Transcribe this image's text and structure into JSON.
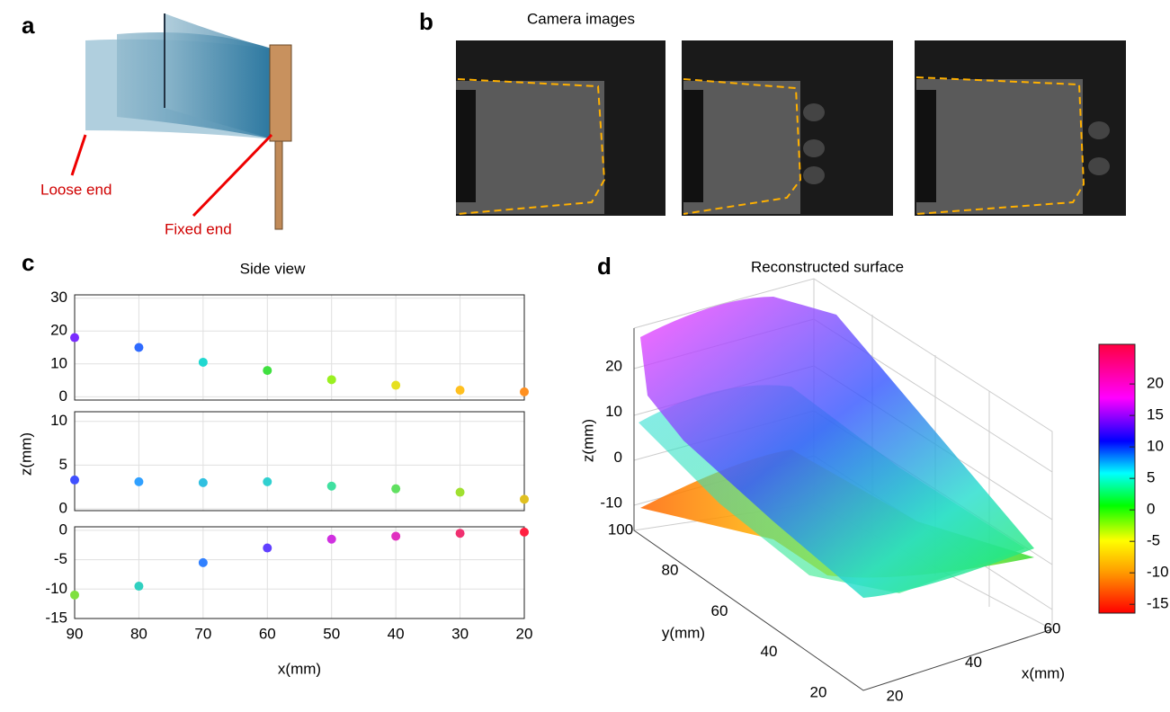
{
  "figure": {
    "letters": [
      "a",
      "b",
      "c",
      "d"
    ],
    "loose_end": "Loose end",
    "fixed_end": "Fixed end",
    "camera_title": "Camera images"
  },
  "chart_data": [
    {
      "type": "scatter",
      "title": "Side view",
      "ylabel": "z(mm)",
      "xlim": [
        90,
        20
      ],
      "xticks": [
        90,
        80,
        70,
        60,
        50,
        40,
        30,
        20
      ],
      "ylim": [
        -1,
        31
      ],
      "yticks": [
        0,
        10,
        20,
        30
      ],
      "grid": true,
      "x": [
        90,
        80,
        70,
        60,
        50,
        40,
        30,
        20
      ],
      "series": [
        {
          "values": [
            18,
            15,
            10.5,
            8,
            5.2,
            3.5,
            2,
            1.5
          ],
          "colors": [
            "#7a2cff",
            "#2f6bff",
            "#20d8d0",
            "#40e040",
            "#9af020",
            "#e6e020",
            "#ffc020",
            "#ff9020"
          ]
        }
      ]
    },
    {
      "type": "scatter",
      "xlim": [
        90,
        20
      ],
      "xticks": [
        90,
        80,
        70,
        60,
        50,
        40,
        30,
        20
      ],
      "ylim": [
        -0.2,
        11.1
      ],
      "yticks": [
        0,
        5,
        10
      ],
      "grid": true,
      "x": [
        90,
        80,
        70,
        60,
        50,
        40,
        30,
        20
      ],
      "series": [
        {
          "values": [
            3.3,
            3.1,
            3,
            3.1,
            2.6,
            2.3,
            1.9,
            1.1
          ],
          "colors": [
            "#4050ff",
            "#30a0ff",
            "#30c0e0",
            "#30d0d0",
            "#40e0a0",
            "#60e060",
            "#a0e030",
            "#e0c020"
          ]
        }
      ]
    },
    {
      "type": "scatter",
      "xlabel": "x(mm)",
      "xlim": [
        90,
        20
      ],
      "xticks": [
        90,
        80,
        70,
        60,
        50,
        40,
        30,
        20
      ],
      "ylim": [
        -15,
        0.6
      ],
      "yticks": [
        0,
        -5,
        -10,
        -15
      ],
      "grid": true,
      "show_xticks": true,
      "x": [
        90,
        80,
        70,
        60,
        50,
        40,
        30,
        20
      ],
      "series": [
        {
          "values": [
            -11,
            -9.5,
            -5.5,
            -3,
            -1.5,
            -1,
            -0.5,
            -0.3
          ],
          "colors": [
            "#80e040",
            "#30d0c0",
            "#3080ff",
            "#6040ff",
            "#d030e0",
            "#e030c0",
            "#f03070",
            "#ff2040"
          ]
        }
      ]
    },
    {
      "type": "surface3d",
      "title": "Reconstructed surface",
      "xlabel": "x(mm)",
      "ylabel": "y(mm)",
      "zlabel": "z(mm)",
      "xticks": [
        20,
        40,
        60
      ],
      "yticks": [
        100,
        80,
        60,
        40,
        20
      ],
      "zticks": [
        20,
        10,
        0,
        -10
      ]
    },
    {
      "type": "colorbar",
      "ylim": [
        -16.4,
        26.3
      ],
      "yticks": [
        20,
        15,
        10,
        5,
        0,
        -5,
        -10,
        -15
      ]
    }
  ]
}
